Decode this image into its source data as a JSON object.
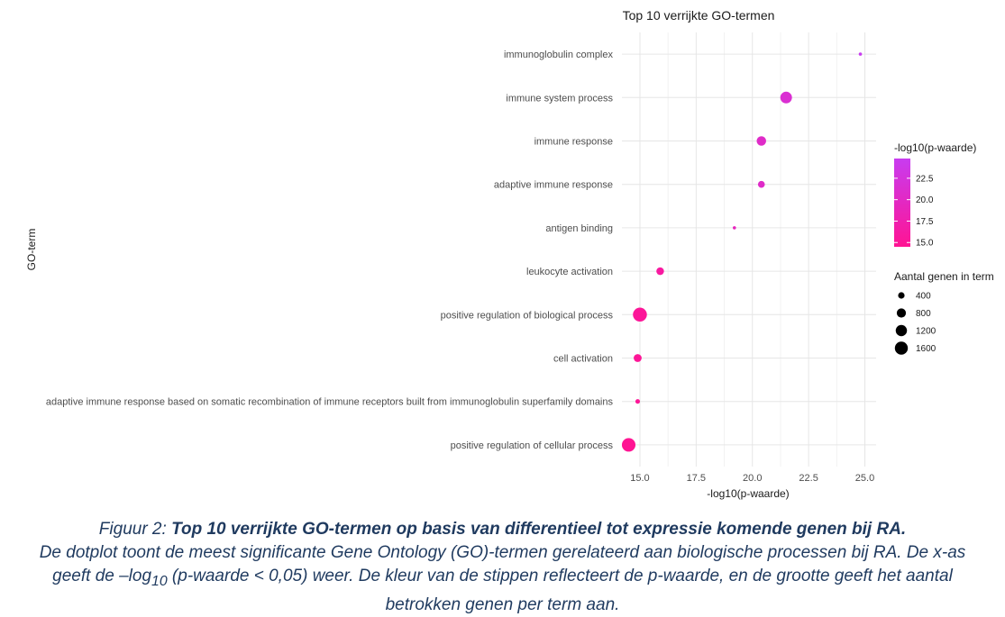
{
  "chart_data": {
    "type": "scatter",
    "title": "Top 10 verrijkte GO-termen",
    "xlabel": "-log10(p-waarde)",
    "ylabel": "GO-term",
    "xlim": [
      14.2,
      25.5
    ],
    "xticks": [
      "15.0",
      "17.5",
      "20.0",
      "22.5",
      "25.0"
    ],
    "xtick_values": [
      15.0,
      17.5,
      20.0,
      22.5,
      25.0
    ],
    "grid": true,
    "points": [
      {
        "term": "immunoglobulin complex",
        "x": 24.8,
        "color_value": 24.8,
        "genes": 80
      },
      {
        "term": "immune system process",
        "x": 21.5,
        "color_value": 21.5,
        "genes": 1300
      },
      {
        "term": "immune response",
        "x": 20.4,
        "color_value": 20.4,
        "genes": 850
      },
      {
        "term": "adaptive immune response",
        "x": 20.4,
        "color_value": 20.4,
        "genes": 450
      },
      {
        "term": "antigen binding",
        "x": 19.2,
        "color_value": 19.2,
        "genes": 60
      },
      {
        "term": "leukocyte activation",
        "x": 15.9,
        "color_value": 15.9,
        "genes": 550
      },
      {
        "term": "positive regulation of biological process",
        "x": 15.0,
        "color_value": 15.0,
        "genes": 1850
      },
      {
        "term": "cell activation",
        "x": 14.9,
        "color_value": 14.9,
        "genes": 600
      },
      {
        "term": "adaptive immune response based on somatic recombination of immune receptors built from immunoglobulin superfamily domains",
        "x": 14.9,
        "color_value": 14.9,
        "genes": 200
      },
      {
        "term": "positive regulation of cellular process",
        "x": 14.5,
        "color_value": 14.5,
        "genes": 1750
      }
    ],
    "color_legend": {
      "title": "-log10(p-waarde)",
      "ticks": [
        "15.0",
        "17.5",
        "20.0",
        "22.5"
      ],
      "tick_values": [
        15.0,
        17.5,
        20.0,
        22.5
      ],
      "range": [
        14.5,
        24.8
      ],
      "color_low": "#ff1493",
      "color_high": "#c83cf0",
      "placement": "right"
    },
    "size_legend": {
      "title": "Aantal genen in term",
      "labels": [
        "400",
        "800",
        "1200",
        "1600"
      ],
      "values": [
        400,
        800,
        1200,
        1600
      ],
      "placement": "right"
    }
  },
  "caption": {
    "label": "Figuur 2: ",
    "bold_title": "Top 10 verrijkte GO-termen op basis van differentieel tot expressie komende genen bij RA.",
    "text_1": "De dotplot toont de meest significante Gene Ontology (GO)-termen gerelateerd aan biologische processen bij RA. De x-as geeft de –log",
    "subscript": "10",
    "text_2": " (p-waarde < 0,05) weer. De kleur van de stippen reflecteert de p-waarde, en de grootte geeft het aantal betrokken genen per term aan."
  }
}
